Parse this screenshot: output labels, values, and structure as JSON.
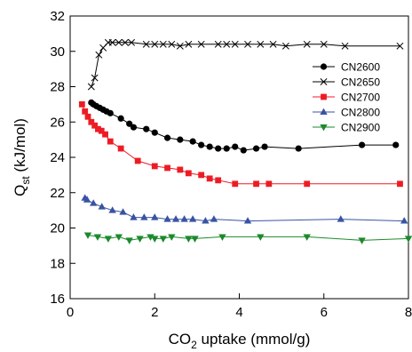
{
  "chart_data": {
    "type": "line",
    "xlabel_main": "CO",
    "xlabel_sub": "2",
    "xlabel_rest": " uptake (mmol/g)",
    "ylabel_main": "Q",
    "ylabel_sub": "st",
    "ylabel_rest": " (kJ/mol)",
    "xlim": [
      0,
      8
    ],
    "ylim": [
      16,
      32
    ],
    "xticks": [
      0,
      2,
      4,
      6,
      8
    ],
    "yticks": [
      16,
      18,
      20,
      22,
      24,
      26,
      28,
      30,
      32
    ],
    "legend_position": "top-right",
    "series": [
      {
        "name": "CN2600",
        "color": "#000000",
        "marker": "circle",
        "x": [
          0.5,
          0.55,
          0.62,
          0.7,
          0.78,
          0.86,
          0.95,
          1.2,
          1.4,
          1.5,
          1.8,
          2.0,
          2.3,
          2.6,
          2.9,
          3.1,
          3.3,
          3.5,
          3.7,
          3.9,
          4.1,
          4.4,
          4.6,
          5.4,
          6.9,
          7.7
        ],
        "y": [
          27.1,
          27.0,
          26.9,
          26.8,
          26.7,
          26.6,
          26.5,
          26.2,
          25.9,
          25.7,
          25.6,
          25.4,
          25.1,
          25.0,
          24.9,
          24.7,
          24.6,
          24.5,
          24.5,
          24.6,
          24.4,
          24.5,
          24.6,
          24.5,
          24.7,
          24.7
        ]
      },
      {
        "name": "CN2650",
        "color": "#000000",
        "marker": "x",
        "x": [
          0.5,
          0.58,
          0.68,
          0.78,
          0.9,
          1.0,
          1.15,
          1.3,
          1.45,
          1.8,
          2.0,
          2.2,
          2.4,
          2.6,
          2.8,
          3.1,
          3.5,
          3.7,
          3.9,
          4.2,
          4.5,
          4.8,
          5.1,
          5.6,
          6.0,
          6.5,
          7.8
        ],
        "y": [
          28.0,
          28.5,
          29.8,
          30.2,
          30.5,
          30.5,
          30.5,
          30.5,
          30.5,
          30.4,
          30.4,
          30.4,
          30.4,
          30.3,
          30.4,
          30.4,
          30.4,
          30.4,
          30.4,
          30.4,
          30.4,
          30.4,
          30.3,
          30.4,
          30.4,
          30.3,
          30.3
        ]
      },
      {
        "name": "CN2700",
        "color": "#ed1c24",
        "marker": "square",
        "x": [
          0.28,
          0.35,
          0.42,
          0.5,
          0.58,
          0.66,
          0.74,
          0.83,
          0.95,
          1.2,
          1.6,
          2.0,
          2.3,
          2.6,
          2.8,
          3.1,
          3.3,
          3.5,
          3.9,
          4.4,
          4.7,
          5.6,
          7.8
        ],
        "y": [
          27.0,
          26.6,
          26.3,
          26.0,
          25.8,
          25.6,
          25.5,
          25.3,
          24.9,
          24.5,
          23.8,
          23.5,
          23.4,
          23.3,
          23.1,
          23.0,
          22.8,
          22.7,
          22.5,
          22.5,
          22.5,
          22.5,
          22.5
        ]
      },
      {
        "name": "CN2800",
        "color": "#3953a4",
        "marker": "triangle-up",
        "x": [
          0.35,
          0.4,
          0.55,
          0.75,
          1.0,
          1.25,
          1.5,
          1.75,
          2.0,
          2.3,
          2.5,
          2.7,
          2.9,
          3.2,
          3.4,
          4.2,
          6.4,
          7.9
        ],
        "y": [
          21.7,
          21.6,
          21.4,
          21.2,
          21.0,
          20.9,
          20.6,
          20.6,
          20.6,
          20.5,
          20.5,
          20.5,
          20.5,
          20.4,
          20.5,
          20.4,
          20.5,
          20.4
        ]
      },
      {
        "name": "CN2900",
        "color": "#1b8a2c",
        "marker": "triangle-down",
        "x": [
          0.42,
          0.65,
          0.9,
          1.15,
          1.4,
          1.65,
          1.9,
          2.0,
          2.2,
          2.4,
          2.8,
          2.95,
          3.6,
          4.5,
          5.6,
          6.9,
          8.0
        ],
        "y": [
          19.6,
          19.5,
          19.4,
          19.5,
          19.3,
          19.4,
          19.5,
          19.4,
          19.4,
          19.5,
          19.4,
          19.4,
          19.5,
          19.5,
          19.5,
          19.3,
          19.4
        ]
      }
    ]
  }
}
